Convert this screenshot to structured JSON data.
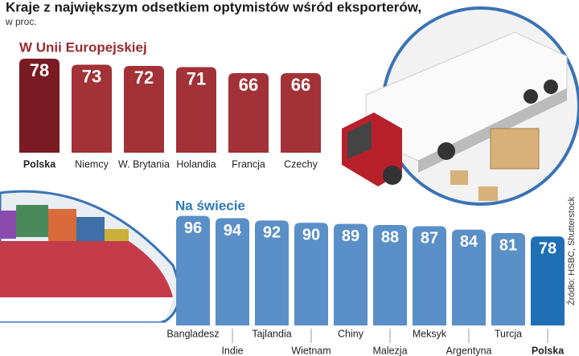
{
  "header": {
    "title": "Kraje z największym odsetkiem optymistów wśród eksporterów,",
    "subtitle": "w proc.",
    "source": "Źródło: HSBC, Shutterstock"
  },
  "chart_data": [
    {
      "type": "bar",
      "title": "W Unii Europejskiej",
      "title_color": "#9b2a2f",
      "categories": [
        "Polska",
        "Niemcy",
        "W. Brytania",
        "Holandia",
        "Francja",
        "Czechy"
      ],
      "values": [
        78,
        73,
        72,
        71,
        66,
        66
      ],
      "color": "#a23237",
      "highlight": {
        "index": 0,
        "color": "#7a1a22"
      }
    },
    {
      "type": "bar",
      "title": "Na świecie",
      "title_color": "#2a78b8",
      "categories": [
        "Bangladesz",
        "Indie",
        "Tajlandia",
        "Wietnam",
        "Chiny",
        "Malezja",
        "Meksyk",
        "Argentyna",
        "Turcja",
        "Polska"
      ],
      "values": [
        96,
        94,
        92,
        90,
        89,
        88,
        87,
        84,
        81,
        78
      ],
      "color": "#5a8fc8",
      "highlight": {
        "index": 9,
        "color": "#1f6fb5"
      }
    }
  ]
}
